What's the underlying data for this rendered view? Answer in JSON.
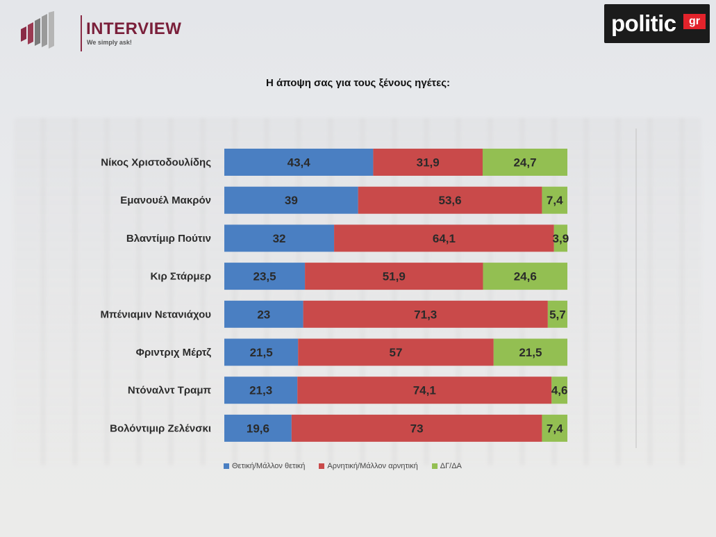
{
  "header": {
    "left_logo": {
      "name": "INTERVIEW",
      "tagline": "We simply ask!"
    },
    "right_logo": {
      "name": "politic",
      "suffix": "gr"
    }
  },
  "colors": {
    "positive": "#4a7fc2",
    "negative": "#c94a4a",
    "unknown": "#93bf52",
    "brand": "#7a1f3a"
  },
  "chart_data": {
    "type": "bar",
    "orientation": "horizontal",
    "stacked": true,
    "title": "Η άποψη σας για τους ξένους ηγέτες:",
    "xlabel": "",
    "ylabel": "",
    "xlim": [
      0,
      100
    ],
    "categories": [
      "Νίκος Χριστοδουλίδης",
      "Εμανουέλ Μακρόν",
      "Βλαντίμιρ Πούτιν",
      "Κιρ Στάρμερ",
      "Μπένιαμιν Νετανιάχου",
      "Φριντριχ Μέρτζ",
      "Ντόναλντ Τραμπ",
      "Βολόντιμιρ Ζελένσκι"
    ],
    "series": [
      {
        "name": "Θετική/Μάλλον θετική",
        "values": [
          43.4,
          39,
          32,
          23.5,
          23,
          21.5,
          21.3,
          19.6
        ],
        "labels": [
          "43,4",
          "39",
          "32",
          "23,5",
          "23",
          "21,5",
          "21,3",
          "19,6"
        ]
      },
      {
        "name": "Αρνητική/Μάλλον αρνητική",
        "values": [
          31.9,
          53.6,
          64.1,
          51.9,
          71.3,
          57,
          74.1,
          73
        ],
        "labels": [
          "31,9",
          "53,6",
          "64,1",
          "51,9",
          "71,3",
          "57",
          "74,1",
          "73"
        ]
      },
      {
        "name": "ΔΓ/ΔΑ",
        "values": [
          24.7,
          7.4,
          3.9,
          24.6,
          5.7,
          21.5,
          4.6,
          7.4
        ],
        "labels": [
          "24,7",
          "7,4",
          "3,9",
          "24,6",
          "5,7",
          "21,5",
          "4,6",
          "7,4"
        ]
      }
    ],
    "legend_position": "bottom",
    "grid": false
  }
}
